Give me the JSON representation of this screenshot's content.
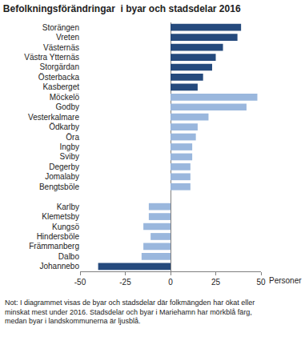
{
  "chart_data": {
    "type": "bar",
    "orientation": "horizontal",
    "title": "Befolkningsförändringar  i byar och stadsdelar 2016",
    "x_label": "Personer",
    "notes": [
      "Not: I diagrammet visas de byar och stadsdelar där folkmängden har ökat eller",
      "minskat mest under 2016. Stadsdelar och byar i Mariehamn har mörkblå färg,",
      "medan byar i landskommunerna är ljusblå."
    ],
    "categories": [
      "Storängen",
      "Vreten",
      "Västernäs",
      "Västra Ytternäs",
      "Storgärdan",
      "Österbacka",
      "Kasberget",
      "Möckelö",
      "Godby",
      "Vesterkalmare",
      "Ödkarby",
      "Öra",
      "Ingby",
      "Sviby",
      "Degerby",
      "Jomalaby",
      "Bengtsböle",
      null,
      "Karlby",
      "Klemetsby",
      "Kungsö",
      "Hindersböle",
      "Främmanberg",
      "Dalbo",
      "Johannebo"
    ],
    "values": [
      39,
      37,
      29,
      25,
      23,
      18,
      15,
      48,
      42,
      21,
      15,
      14,
      12,
      12,
      11,
      11,
      11,
      null,
      -12,
      -12,
      -15,
      -11,
      -15,
      -16,
      -40
    ],
    "colors": [
      "#254a7d",
      "#254a7d",
      "#254a7d",
      "#254a7d",
      "#254a7d",
      "#254a7d",
      "#254a7d",
      "#9ab7dd",
      "#9ab7dd",
      "#9ab7dd",
      "#9ab7dd",
      "#9ab7dd",
      "#9ab7dd",
      "#9ab7dd",
      "#9ab7dd",
      "#9ab7dd",
      "#9ab7dd",
      null,
      "#9ab7dd",
      "#9ab7dd",
      "#9ab7dd",
      "#9ab7dd",
      "#9ab7dd",
      "#9ab7dd",
      "#254a7d"
    ],
    "xlim": [
      -50,
      50
    ],
    "xticks": [
      -50,
      -25,
      0,
      25,
      50
    ],
    "grid": false
  }
}
